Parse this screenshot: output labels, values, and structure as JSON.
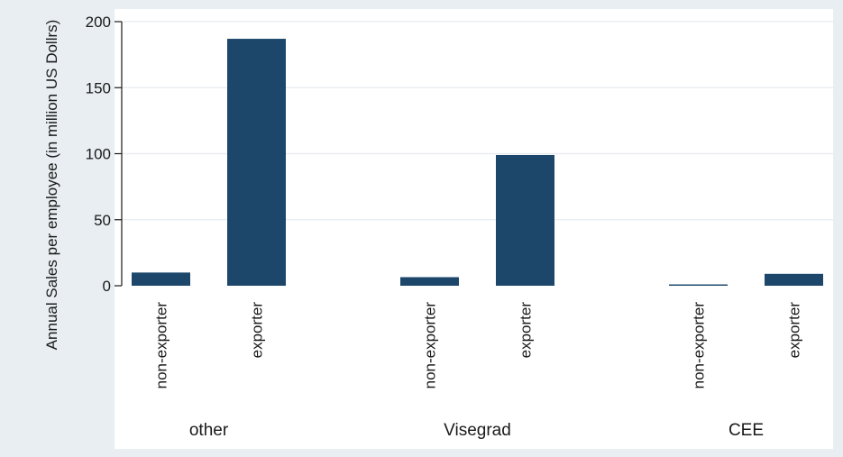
{
  "chart_data": {
    "type": "bar",
    "ylabel": "Annual Sales per employee (in million US Dollrs)",
    "xlabel": "",
    "ylim": [
      0,
      200
    ],
    "yticks": [
      0,
      50,
      100,
      150,
      200
    ],
    "grid": true,
    "groups": [
      {
        "name": "other",
        "categories": [
          "non-exporter",
          "exporter"
        ],
        "values": [
          10,
          187
        ]
      },
      {
        "name": "Visegrad",
        "categories": [
          "non-exporter",
          "exporter"
        ],
        "values": [
          6.5,
          99
        ]
      },
      {
        "name": "CEE",
        "categories": [
          "non-exporter",
          "exporter"
        ],
        "values": [
          1,
          9
        ]
      }
    ],
    "colors": {
      "outer_background": "#e8eef1",
      "plot_background": "#ffffff",
      "bar": "#1c476b",
      "grid": "#e6ecef",
      "axis": "#1a1a1a"
    }
  }
}
